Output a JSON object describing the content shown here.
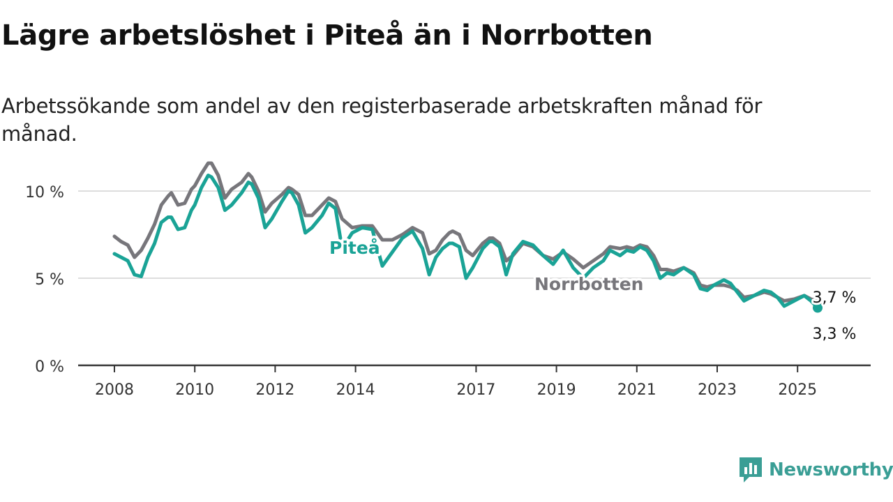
{
  "title": "Lägre arbetslöshet i Piteå än i Norrbotten",
  "subtitle": "Arbetssökande som andel av den registerbaserade arbetskraften månad för månad.",
  "brand": {
    "name": "Newsworthy",
    "icon": "newsworthy-logo-icon",
    "color": "#3a9e95"
  },
  "colors": {
    "pitea": "#1aa396",
    "norrbotten": "#77767b",
    "grid": "#dddddd",
    "axis": "#333333"
  },
  "chart_data": {
    "type": "line",
    "title": "Lägre arbetslöshet i Piteå än i Norrbotten",
    "xlabel": "",
    "ylabel": "",
    "ylim": [
      0,
      12
    ],
    "yticks": [
      0,
      5,
      10
    ],
    "y_tick_labels": [
      "0 %",
      "5 %",
      "10 %"
    ],
    "xlim": [
      "2008-01",
      "2025-12"
    ],
    "x_tick_labels": [
      "2008",
      "2010",
      "2012",
      "2014",
      "2017",
      "2019",
      "2021",
      "2023",
      "2025"
    ],
    "grid": true,
    "series": [
      {
        "name": "Norrbotten",
        "color": "#77767b",
        "inline_label": "Norrbotten",
        "end_label": "3,7 %",
        "points": [
          [
            "2008-01",
            7.4
          ],
          [
            "2008-03",
            7.1
          ],
          [
            "2008-05",
            6.9
          ],
          [
            "2008-07",
            6.2
          ],
          [
            "2008-09",
            6.6
          ],
          [
            "2008-11",
            7.3
          ],
          [
            "2009-01",
            8.1
          ],
          [
            "2009-03",
            9.2
          ],
          [
            "2009-05",
            9.7
          ],
          [
            "2009-06",
            9.9
          ],
          [
            "2009-08",
            9.2
          ],
          [
            "2009-10",
            9.3
          ],
          [
            "2009-12",
            10.1
          ],
          [
            "2010-01",
            10.3
          ],
          [
            "2010-03",
            11.0
          ],
          [
            "2010-05",
            11.6
          ],
          [
            "2010-06",
            11.6
          ],
          [
            "2010-08",
            10.9
          ],
          [
            "2010-10",
            9.6
          ],
          [
            "2010-12",
            10.1
          ],
          [
            "2011-03",
            10.5
          ],
          [
            "2011-05",
            11.0
          ],
          [
            "2011-06",
            10.8
          ],
          [
            "2011-08",
            10.0
          ],
          [
            "2011-10",
            8.8
          ],
          [
            "2011-12",
            9.3
          ],
          [
            "2012-03",
            9.8
          ],
          [
            "2012-05",
            10.2
          ],
          [
            "2012-06",
            10.1
          ],
          [
            "2012-08",
            9.8
          ],
          [
            "2012-10",
            8.6
          ],
          [
            "2012-12",
            8.6
          ],
          [
            "2013-03",
            9.2
          ],
          [
            "2013-05",
            9.6
          ],
          [
            "2013-07",
            9.4
          ],
          [
            "2013-09",
            8.4
          ],
          [
            "2013-12",
            7.9
          ],
          [
            "2014-03",
            8.0
          ],
          [
            "2014-06",
            8.0
          ],
          [
            "2014-09",
            7.2
          ],
          [
            "2014-12",
            7.2
          ],
          [
            "2015-03",
            7.5
          ],
          [
            "2015-06",
            7.9
          ],
          [
            "2015-09",
            7.6
          ],
          [
            "2015-11",
            6.4
          ],
          [
            "2016-01",
            6.6
          ],
          [
            "2016-03",
            7.2
          ],
          [
            "2016-05",
            7.6
          ],
          [
            "2016-06",
            7.7
          ],
          [
            "2016-08",
            7.5
          ],
          [
            "2016-10",
            6.6
          ],
          [
            "2016-12",
            6.3
          ],
          [
            "2017-03",
            7.0
          ],
          [
            "2017-05",
            7.3
          ],
          [
            "2017-06",
            7.3
          ],
          [
            "2017-08",
            7.0
          ],
          [
            "2017-10",
            6.0
          ],
          [
            "2017-12",
            6.3
          ],
          [
            "2018-03",
            7.0
          ],
          [
            "2018-06",
            6.8
          ],
          [
            "2018-09",
            6.3
          ],
          [
            "2018-12",
            6.1
          ],
          [
            "2019-03",
            6.5
          ],
          [
            "2019-06",
            6.1
          ],
          [
            "2019-09",
            5.6
          ],
          [
            "2019-12",
            6.0
          ],
          [
            "2020-03",
            6.4
          ],
          [
            "2020-05",
            6.8
          ],
          [
            "2020-08",
            6.7
          ],
          [
            "2020-10",
            6.8
          ],
          [
            "2020-12",
            6.7
          ],
          [
            "2021-02",
            6.9
          ],
          [
            "2021-04",
            6.8
          ],
          [
            "2021-06",
            6.3
          ],
          [
            "2021-08",
            5.5
          ],
          [
            "2021-10",
            5.5
          ],
          [
            "2021-12",
            5.4
          ],
          [
            "2022-03",
            5.6
          ],
          [
            "2022-06",
            5.3
          ],
          [
            "2022-08",
            4.6
          ],
          [
            "2022-10",
            4.5
          ],
          [
            "2022-12",
            4.6
          ],
          [
            "2023-03",
            4.6
          ],
          [
            "2023-05",
            4.5
          ],
          [
            "2023-07",
            4.3
          ],
          [
            "2023-09",
            3.9
          ],
          [
            "2023-12",
            4.0
          ],
          [
            "2024-03",
            4.2
          ],
          [
            "2024-05",
            4.1
          ],
          [
            "2024-07",
            3.9
          ],
          [
            "2024-09",
            3.7
          ],
          [
            "2024-12",
            3.8
          ],
          [
            "2025-03",
            4.0
          ],
          [
            "2025-05",
            3.8
          ],
          [
            "2025-07",
            3.7
          ]
        ]
      },
      {
        "name": "Piteå",
        "color": "#1aa396",
        "inline_label": "Piteå",
        "end_label": "3,3 %",
        "points": [
          [
            "2008-01",
            6.4
          ],
          [
            "2008-03",
            6.2
          ],
          [
            "2008-05",
            6.0
          ],
          [
            "2008-07",
            5.2
          ],
          [
            "2008-09",
            5.1
          ],
          [
            "2008-11",
            6.2
          ],
          [
            "2009-01",
            7.0
          ],
          [
            "2009-03",
            8.2
          ],
          [
            "2009-05",
            8.5
          ],
          [
            "2009-06",
            8.5
          ],
          [
            "2009-08",
            7.8
          ],
          [
            "2009-10",
            7.9
          ],
          [
            "2009-12",
            8.9
          ],
          [
            "2010-01",
            9.2
          ],
          [
            "2010-03",
            10.2
          ],
          [
            "2010-05",
            10.9
          ],
          [
            "2010-06",
            10.8
          ],
          [
            "2010-08",
            10.2
          ],
          [
            "2010-10",
            8.9
          ],
          [
            "2010-12",
            9.2
          ],
          [
            "2011-03",
            9.9
          ],
          [
            "2011-05",
            10.5
          ],
          [
            "2011-06",
            10.4
          ],
          [
            "2011-08",
            9.6
          ],
          [
            "2011-10",
            7.9
          ],
          [
            "2011-12",
            8.4
          ],
          [
            "2012-03",
            9.4
          ],
          [
            "2012-05",
            10.0
          ],
          [
            "2012-06",
            9.9
          ],
          [
            "2012-08",
            9.2
          ],
          [
            "2012-10",
            7.6
          ],
          [
            "2012-12",
            7.9
          ],
          [
            "2013-03",
            8.6
          ],
          [
            "2013-05",
            9.3
          ],
          [
            "2013-07",
            9.0
          ],
          [
            "2013-09",
            6.7
          ],
          [
            "2013-12",
            7.6
          ],
          [
            "2014-03",
            7.9
          ],
          [
            "2014-06",
            7.8
          ],
          [
            "2014-09",
            5.7
          ],
          [
            "2014-12",
            6.5
          ],
          [
            "2015-03",
            7.3
          ],
          [
            "2015-06",
            7.7
          ],
          [
            "2015-09",
            6.7
          ],
          [
            "2015-11",
            5.2
          ],
          [
            "2016-01",
            6.2
          ],
          [
            "2016-03",
            6.7
          ],
          [
            "2016-05",
            7.0
          ],
          [
            "2016-06",
            7.0
          ],
          [
            "2016-08",
            6.8
          ],
          [
            "2016-10",
            5.0
          ],
          [
            "2016-12",
            5.6
          ],
          [
            "2017-03",
            6.7
          ],
          [
            "2017-05",
            7.1
          ],
          [
            "2017-06",
            7.1
          ],
          [
            "2017-08",
            6.8
          ],
          [
            "2017-10",
            5.2
          ],
          [
            "2017-12",
            6.4
          ],
          [
            "2018-03",
            7.1
          ],
          [
            "2018-06",
            6.9
          ],
          [
            "2018-09",
            6.3
          ],
          [
            "2018-12",
            5.8
          ],
          [
            "2019-03",
            6.6
          ],
          [
            "2019-06",
            5.6
          ],
          [
            "2019-09",
            5.0
          ],
          [
            "2019-12",
            5.6
          ],
          [
            "2020-03",
            6.0
          ],
          [
            "2020-05",
            6.6
          ],
          [
            "2020-08",
            6.3
          ],
          [
            "2020-10",
            6.6
          ],
          [
            "2020-12",
            6.5
          ],
          [
            "2021-02",
            6.8
          ],
          [
            "2021-04",
            6.6
          ],
          [
            "2021-06",
            6.0
          ],
          [
            "2021-08",
            5.0
          ],
          [
            "2021-10",
            5.3
          ],
          [
            "2021-12",
            5.2
          ],
          [
            "2022-03",
            5.6
          ],
          [
            "2022-06",
            5.2
          ],
          [
            "2022-08",
            4.4
          ],
          [
            "2022-10",
            4.3
          ],
          [
            "2022-12",
            4.6
          ],
          [
            "2023-03",
            4.9
          ],
          [
            "2023-05",
            4.7
          ],
          [
            "2023-07",
            4.2
          ],
          [
            "2023-09",
            3.7
          ],
          [
            "2023-12",
            4.0
          ],
          [
            "2024-03",
            4.3
          ],
          [
            "2024-05",
            4.2
          ],
          [
            "2024-07",
            3.9
          ],
          [
            "2024-09",
            3.4
          ],
          [
            "2024-12",
            3.7
          ],
          [
            "2025-03",
            4.0
          ],
          [
            "2025-05",
            3.7
          ],
          [
            "2025-07",
            3.3
          ]
        ]
      }
    ]
  }
}
